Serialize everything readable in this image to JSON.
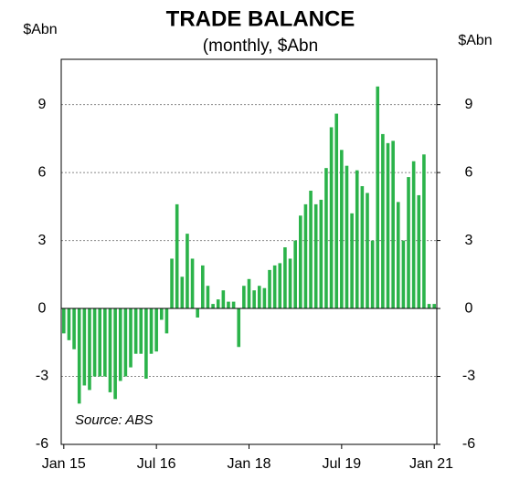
{
  "chart_data": {
    "type": "bar",
    "title": "TRADE BALANCE",
    "subtitle": "(monthly, $Abn",
    "y_label": "$Abn",
    "y2_label": "$Abn",
    "annotation": "Source: ABS",
    "categories": [
      "Jan 15",
      null,
      null,
      null,
      null,
      null,
      null,
      null,
      null,
      null,
      null,
      null,
      null,
      null,
      null,
      null,
      null,
      null,
      "Jul 16",
      null,
      null,
      null,
      null,
      null,
      null,
      null,
      null,
      null,
      null,
      null,
      null,
      null,
      null,
      null,
      null,
      null,
      "Jan 18",
      null,
      null,
      null,
      null,
      null,
      null,
      null,
      null,
      null,
      null,
      null,
      null,
      null,
      null,
      null,
      null,
      null,
      "Jul 19",
      null,
      null,
      null,
      null,
      null,
      null,
      null,
      null,
      null,
      null,
      null,
      null,
      null,
      null,
      null,
      null,
      null,
      "Jan 21"
    ],
    "values": [
      -1.1,
      -1.4,
      -1.8,
      -4.2,
      -3.4,
      -3.6,
      -3.0,
      -3.0,
      -3.0,
      -3.7,
      -4.0,
      -3.2,
      -3.0,
      -2.6,
      -2.0,
      -2.0,
      -3.1,
      -2.0,
      -1.9,
      -0.5,
      -1.1,
      2.2,
      4.6,
      1.4,
      3.3,
      2.2,
      -0.4,
      1.9,
      1.0,
      0.2,
      0.4,
      0.8,
      0.3,
      0.3,
      -1.7,
      1.0,
      1.3,
      0.8,
      1.0,
      0.9,
      1.7,
      1.9,
      2.0,
      2.7,
      2.2,
      3.0,
      4.1,
      4.6,
      5.2,
      4.6,
      4.8,
      6.2,
      8.0,
      8.6,
      7.0,
      6.3,
      4.2,
      6.1,
      5.4,
      5.1,
      3.0,
      9.8,
      7.7,
      7.3,
      7.4,
      4.7,
      3.0,
      5.8,
      6.5,
      5.0,
      6.8,
      0.2,
      0.2
    ],
    "color": "#2bb34a",
    "ylim": [
      -6,
      11
    ],
    "yticks": [
      -6,
      -3,
      0,
      3,
      6,
      9
    ],
    "y2lim": [
      -6,
      11
    ],
    "y2ticks": [
      -6,
      -3,
      0,
      3,
      6,
      9
    ],
    "grid": true
  }
}
